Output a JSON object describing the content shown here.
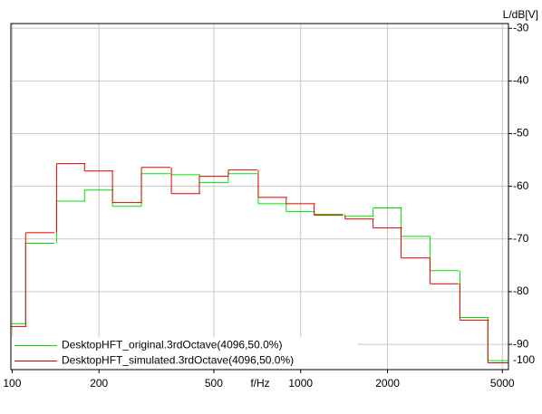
{
  "chart_data": {
    "type": "step",
    "y_axis_label": "L/dB[V]",
    "x_axis_label": "f/Hz",
    "x": [
      100,
      125,
      160,
      200,
      250,
      315,
      400,
      500,
      630,
      800,
      1000,
      1250,
      1600,
      2000,
      2500,
      3150,
      4000,
      5000
    ],
    "series": [
      {
        "name": "DesktopHFT_original.3rdOctave(4096,50.0%)",
        "color": "#00e000",
        "values": [
          -86.1,
          -70.8,
          -62.8,
          -60.7,
          -63.8,
          -57.6,
          -57.8,
          -59.3,
          -57.6,
          -63.3,
          -64.8,
          -65.3,
          -65.7,
          -64.1,
          -69.5,
          -76.0,
          -84.9,
          -93.1
        ]
      },
      {
        "name": "DesktopHFT_simulated.3rdOctave(4096,50.0%)",
        "color": "#e00000",
        "values": [
          -86.6,
          -68.8,
          -55.7,
          -57.1,
          -63.1,
          -56.4,
          -61.4,
          -58.1,
          -56.9,
          -62.1,
          -63.3,
          -65.5,
          -66.2,
          -67.9,
          -73.6,
          -78.5,
          -85.4,
          -93.5
        ]
      }
    ],
    "xscale": "log",
    "xlim": [
      99,
      5250
    ],
    "xticks": [
      100,
      200,
      500,
      1000,
      2000,
      5000
    ],
    "ylim": [
      -94.8,
      -29.1
    ],
    "yticks": [
      -30,
      -40,
      -50,
      -60,
      -70,
      -80,
      -90,
      -100
    ],
    "grid": true,
    "legend": "lower left"
  }
}
